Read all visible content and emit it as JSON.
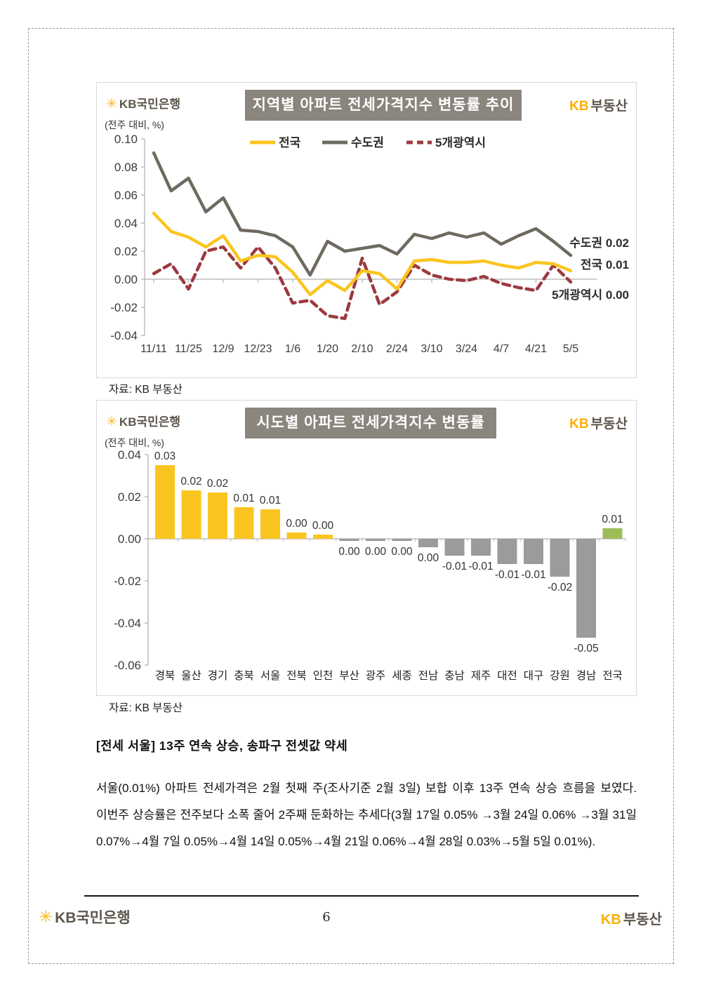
{
  "page": {
    "number": "6",
    "source_label": "자료: KB 부동산"
  },
  "logos": {
    "bank_star": "✳",
    "bank_text": "KB국민은행",
    "re_kb": "KB",
    "re_text": "부동산"
  },
  "article": {
    "heading": "[전세 서울] 13주 연속 상승, 송파구 전셋값 약세",
    "body": "서울(0.01%) 아파트 전세가격은 2월 첫째 주(조사기준 2월 3일) 보합 이후 13주 연속 상승 흐름을 보였다. 이번주 상승률은 전주보다 소폭 줄어 2주째 둔화하는 추세다(3월 17일 0.05% →3월 24일 0.06% →3월 31일 0.07%→4월 7일 0.05%→4월 14일 0.05%→4월 21일 0.06%→4월 28일 0.03%→5월 5일 0.01%)."
  },
  "chart_data": [
    {
      "type": "line",
      "title": "지역별 아파트 전세가격지수 변동률 추이",
      "unit": "(전주 대비, %)",
      "ylim": [
        -0.04,
        0.1
      ],
      "ytick_labels": [
        "0.10",
        "0.08",
        "0.06",
        "0.04",
        "0.02",
        "0.00",
        "-0.02",
        "-0.04"
      ],
      "x_labels": [
        "11/11",
        "11/25",
        "12/9",
        "12/23",
        "1/6",
        "1/20",
        "2/10",
        "2/24",
        "3/10",
        "3/24",
        "4/7",
        "4/21",
        "5/5"
      ],
      "points_per_label": 2,
      "grid": false,
      "legend_position": "top-center",
      "series": [
        {
          "name": "전국",
          "color": "#fbc520",
          "dashed": false,
          "values": [
            0.047,
            0.034,
            0.03,
            0.023,
            0.031,
            0.013,
            0.017,
            0.016,
            0.005,
            -0.011,
            -0.001,
            -0.008,
            0.006,
            0.004,
            -0.007,
            0.013,
            0.014,
            0.012,
            0.012,
            0.013,
            0.01,
            0.008,
            0.012,
            0.011,
            0.006
          ]
        },
        {
          "name": "수도권",
          "color": "#6e6a60",
          "dashed": false,
          "values": [
            0.09,
            0.063,
            0.072,
            0.048,
            0.058,
            0.035,
            0.034,
            0.031,
            0.023,
            0.003,
            0.027,
            0.02,
            0.022,
            0.024,
            0.018,
            0.032,
            0.029,
            0.033,
            0.03,
            0.033,
            0.025,
            0.031,
            0.036,
            0.027,
            0.017
          ]
        },
        {
          "name": "5개광역시",
          "color": "#9c3a40",
          "dashed": true,
          "values": [
            0.004,
            0.011,
            -0.007,
            0.02,
            0.023,
            0.008,
            0.023,
            0.008,
            -0.017,
            -0.015,
            -0.026,
            -0.028,
            0.015,
            -0.018,
            -0.009,
            0.01,
            0.003,
            0.0,
            -0.001,
            0.002,
            -0.003,
            -0.006,
            -0.008,
            0.01,
            -0.002
          ]
        }
      ],
      "end_labels": [
        {
          "text": "수도권 0.02",
          "v": 0.026
        },
        {
          "text": "전국 0.01",
          "v": 0.0105
        },
        {
          "text": "5개광역시 0.00",
          "v": -0.011
        }
      ]
    },
    {
      "type": "bar",
      "title": "시도별 아파트 전세가격지수 변동률",
      "unit": "(전주 대비, %)",
      "ylim": [
        -0.06,
        0.04
      ],
      "ytick_labels": [
        "0.04",
        "0.02",
        "0.00",
        "-0.02",
        "-0.04",
        "-0.06"
      ],
      "categories": [
        "경북",
        "울산",
        "경기",
        "충북",
        "서울",
        "전북",
        "인천",
        "부산",
        "광주",
        "세종",
        "전남",
        "충남",
        "제주",
        "대전",
        "대구",
        "강원",
        "경남",
        "전국"
      ],
      "values": [
        0.035,
        0.023,
        0.022,
        0.015,
        0.014,
        0.003,
        0.002,
        -0.001,
        -0.001,
        -0.001,
        -0.004,
        -0.008,
        -0.008,
        -0.012,
        -0.012,
        -0.018,
        -0.047,
        0.005
      ],
      "labels": [
        "0.03",
        "0.02",
        "0.02",
        "0.01",
        "0.01",
        "0.00",
        "0.00",
        "0.00",
        "0.00",
        "0.00",
        "0.00",
        "-0.01",
        "-0.01",
        "-0.01",
        "-0.01",
        "-0.02",
        "-0.05",
        "0.01"
      ],
      "colors": [
        "#fbc520",
        "#fbc520",
        "#fbc520",
        "#fbc520",
        "#fbc520",
        "#fbc520",
        "#fbc520",
        "#9b9b9b",
        "#9b9b9b",
        "#9b9b9b",
        "#9b9b9b",
        "#9b9b9b",
        "#9b9b9b",
        "#9b9b9b",
        "#9b9b9b",
        "#9b9b9b",
        "#9b9b9b",
        "#9cbe59"
      ],
      "grid": false
    }
  ]
}
